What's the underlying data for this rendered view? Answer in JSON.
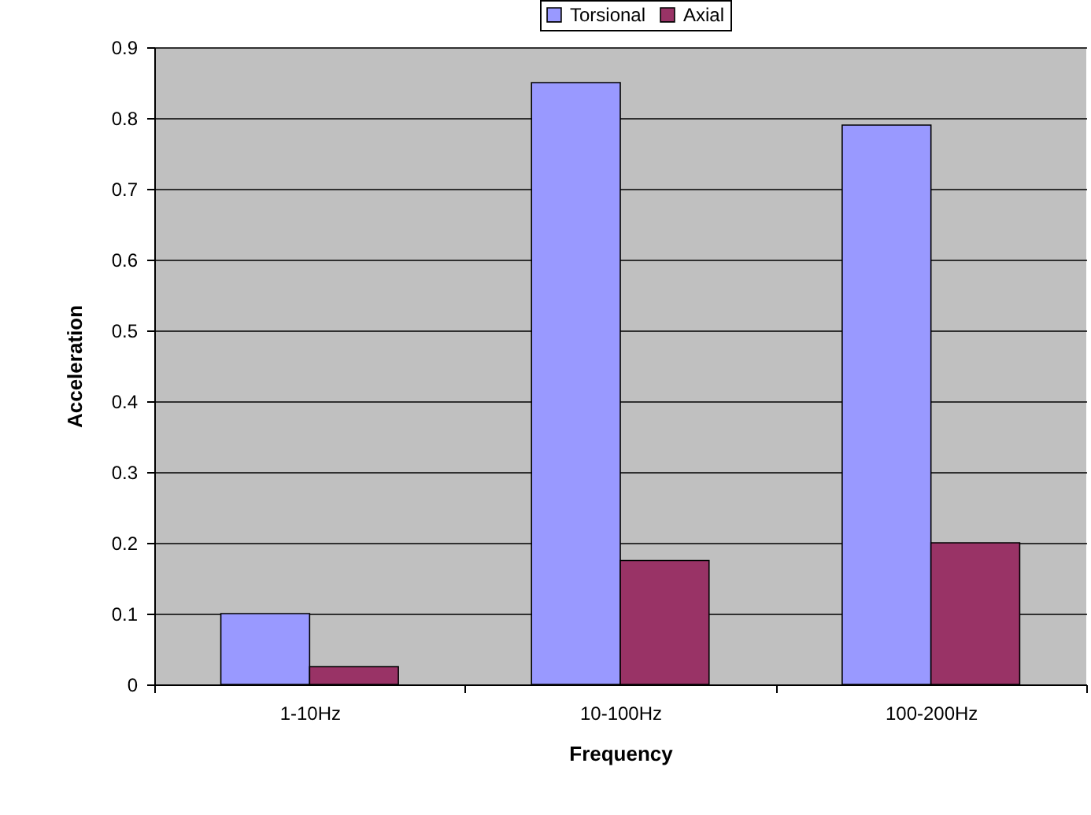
{
  "chart_data": {
    "type": "bar",
    "xlabel": "Frequency",
    "ylabel": "Acceleration",
    "categories": [
      "1-10Hz",
      "10-100Hz",
      "100-200Hz"
    ],
    "series": [
      {
        "name": "Torsional",
        "color": "#9999ff",
        "values": [
          0.1,
          0.85,
          0.79
        ]
      },
      {
        "name": "Axial",
        "color": "#993366",
        "values": [
          0.025,
          0.175,
          0.2
        ]
      }
    ],
    "ylim": [
      0,
      0.9
    ],
    "yticks": [
      0,
      0.1,
      0.2,
      0.3,
      0.4,
      0.5,
      0.6,
      0.7,
      0.8,
      0.9
    ],
    "grid": "y",
    "legend": "top"
  }
}
